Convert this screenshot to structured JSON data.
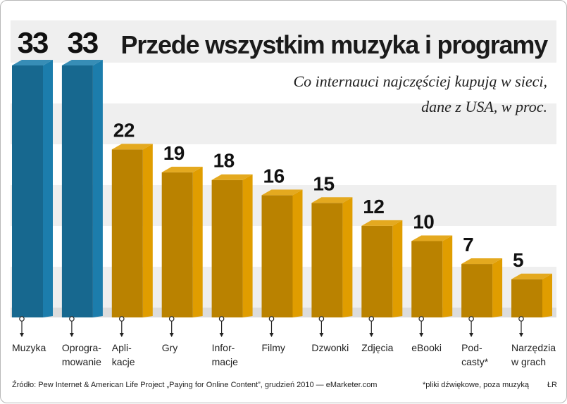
{
  "chart_data": {
    "type": "bar",
    "title": "Przede wszystkim muzyka i programy",
    "subtitle_lines": [
      "Co internauci najczęściej kupują w sieci,",
      "dane z USA, w proc."
    ],
    "categories": [
      [
        "Muzyka"
      ],
      [
        "Oprogra-",
        "mowanie"
      ],
      [
        "Apli-",
        "kacje"
      ],
      [
        "Gry"
      ],
      [
        "Infor-",
        "macje"
      ],
      [
        "Filmy"
      ],
      [
        "Dzwonki"
      ],
      [
        "Zdjęcia"
      ],
      [
        "eBooki"
      ],
      [
        "Pod-",
        "casty*"
      ],
      [
        "Narzędzia",
        "w grach"
      ]
    ],
    "values": [
      33,
      33,
      22,
      19,
      18,
      16,
      15,
      12,
      10,
      7,
      5
    ],
    "highlight_color": "#1c7dac",
    "bar_color": "#e09d00",
    "value_label_highlight_color": "#1c7dac",
    "value_label_color": "#111111",
    "ylim": [
      0,
      33
    ],
    "grid": false,
    "source": "Źródło: Pew Internet & American Life Project „Paying for Online Content”, grudzień 2010 — eMarketer.com",
    "footnote": "*pliki dźwiękowe, poza muzyką",
    "credit": "ŁR"
  }
}
